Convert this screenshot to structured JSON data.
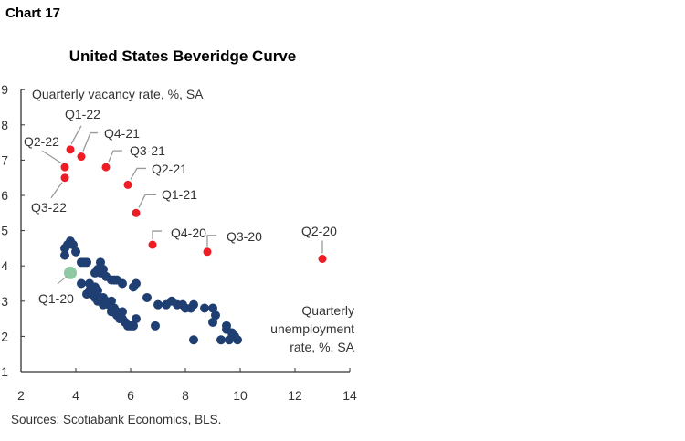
{
  "chart_label": "Chart 17",
  "chart_data": {
    "type": "scatter",
    "title": "United States Beveridge Curve",
    "ylabel": "Quarterly vacancy rate, %, SA",
    "xlabel": "Quarterly unemployment rate, %, SA",
    "xlim": [
      2,
      14
    ],
    "ylim": [
      1,
      9
    ],
    "xticks": [
      2,
      4,
      6,
      8,
      10,
      12,
      14
    ],
    "yticks": [
      1,
      2,
      3,
      4,
      5,
      6,
      7,
      8,
      9
    ],
    "grid": false,
    "colors": {
      "history": "#1f3f73",
      "highlight": "#ee1c25",
      "reference": "#8fc9a4"
    },
    "history": [
      [
        3.6,
        4.5
      ],
      [
        3.6,
        4.3
      ],
      [
        3.7,
        4.6
      ],
      [
        3.8,
        4.7
      ],
      [
        3.9,
        4.6
      ],
      [
        4.0,
        4.4
      ],
      [
        4.2,
        4.1
      ],
      [
        4.3,
        4.1
      ],
      [
        4.4,
        4.1
      ],
      [
        4.2,
        3.5
      ],
      [
        4.4,
        3.2
      ],
      [
        4.5,
        3.5
      ],
      [
        4.5,
        3.3
      ],
      [
        4.6,
        3.4
      ],
      [
        4.6,
        3.2
      ],
      [
        4.7,
        3.4
      ],
      [
        4.7,
        3.1
      ],
      [
        4.8,
        3.3
      ],
      [
        4.8,
        3.0
      ],
      [
        4.9,
        3.1
      ],
      [
        5.0,
        3.1
      ],
      [
        5.0,
        2.9
      ],
      [
        5.1,
        3.0
      ],
      [
        5.2,
        2.9
      ],
      [
        5.3,
        2.7
      ],
      [
        5.3,
        3.0
      ],
      [
        5.4,
        2.8
      ],
      [
        5.5,
        2.7
      ],
      [
        5.5,
        2.6
      ],
      [
        5.6,
        2.5
      ],
      [
        5.7,
        2.7
      ],
      [
        5.7,
        2.5
      ],
      [
        5.8,
        2.4
      ],
      [
        5.9,
        2.3
      ],
      [
        6.0,
        2.3
      ],
      [
        6.1,
        2.3
      ],
      [
        6.2,
        2.5
      ],
      [
        4.7,
        3.8
      ],
      [
        4.8,
        3.9
      ],
      [
        4.9,
        4.1
      ],
      [
        4.9,
        3.8
      ],
      [
        5.0,
        3.9
      ],
      [
        5.1,
        3.7
      ],
      [
        5.3,
        3.6
      ],
      [
        5.4,
        3.6
      ],
      [
        5.5,
        3.6
      ],
      [
        5.7,
        3.5
      ],
      [
        6.1,
        3.4
      ],
      [
        6.2,
        3.5
      ],
      [
        6.6,
        3.1
      ],
      [
        6.9,
        2.3
      ],
      [
        7.0,
        2.9
      ],
      [
        7.3,
        2.9
      ],
      [
        7.5,
        3.0
      ],
      [
        7.7,
        2.9
      ],
      [
        7.9,
        2.9
      ],
      [
        8.0,
        2.8
      ],
      [
        8.2,
        2.8
      ],
      [
        8.3,
        2.9
      ],
      [
        8.3,
        1.9
      ],
      [
        8.7,
        2.8
      ],
      [
        9.0,
        2.8
      ],
      [
        9.1,
        2.6
      ],
      [
        9.0,
        2.4
      ],
      [
        9.3,
        1.9
      ],
      [
        9.5,
        2.3
      ],
      [
        9.5,
        2.2
      ],
      [
        9.6,
        1.9
      ],
      [
        9.7,
        2.1
      ],
      [
        9.8,
        2.0
      ],
      [
        9.9,
        1.9
      ]
    ],
    "reference": {
      "label": "Q1-20",
      "x": 3.8,
      "y": 3.8
    },
    "highlighted": [
      {
        "label": "Q2-20",
        "x": 13.0,
        "y": 4.2
      },
      {
        "label": "Q3-20",
        "x": 8.8,
        "y": 4.4
      },
      {
        "label": "Q4-20",
        "x": 6.8,
        "y": 4.6
      },
      {
        "label": "Q1-21",
        "x": 6.2,
        "y": 5.5
      },
      {
        "label": "Q2-21",
        "x": 5.9,
        "y": 6.3
      },
      {
        "label": "Q3-21",
        "x": 5.1,
        "y": 6.8
      },
      {
        "label": "Q4-21",
        "x": 4.2,
        "y": 7.1
      },
      {
        "label": "Q1-22",
        "x": 3.8,
        "y": 7.3
      },
      {
        "label": "Q2-22",
        "x": 3.6,
        "y": 6.8
      },
      {
        "label": "Q3-22",
        "x": 3.6,
        "y": 6.5
      }
    ]
  },
  "source": "Sources: Scotiabank Economics, BLS."
}
